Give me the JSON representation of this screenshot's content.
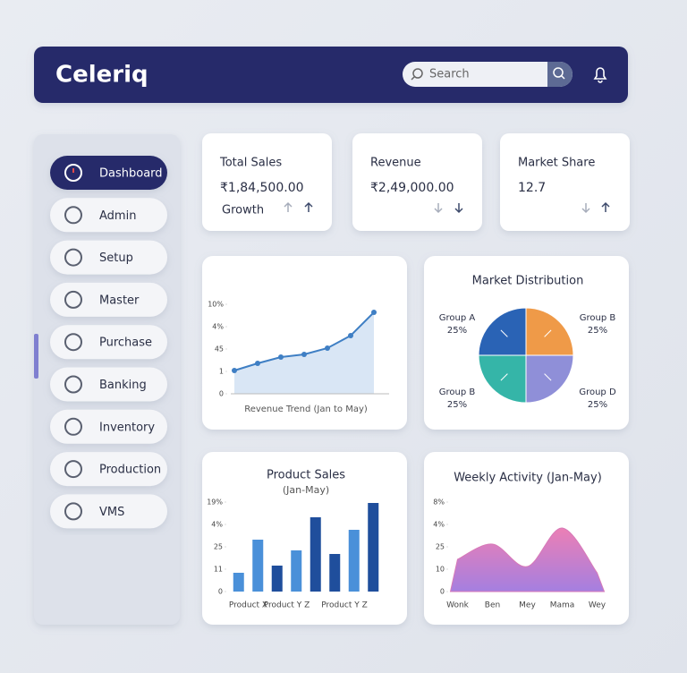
{
  "header": {
    "title": "Celeriq",
    "search_placeholder": "Search"
  },
  "sidebar": {
    "items": [
      "Dashboard",
      "Admin",
      "Setup",
      "Master",
      "Purchase",
      "Banking",
      "Inventory",
      "Production",
      "VMS"
    ]
  },
  "cards": [
    {
      "title": "Total Sales",
      "value": "₹1,84,500.00",
      "note": "Growth"
    },
    {
      "title": "Revenue",
      "value": "₹2,49,000.00"
    },
    {
      "title": "Market Share",
      "value": "12.7"
    }
  ],
  "chart_data": [
    {
      "type": "line",
      "caption": "Revenue Trend (Jan to May)",
      "categories": [
        null,
        null,
        null,
        null,
        null,
        null,
        null
      ],
      "values": [
        1.04,
        1.36,
        1.64,
        1.76,
        2.04,
        2.6,
        3.64
      ],
      "color": "#3f7fc4",
      "ylim": [
        0,
        4
      ],
      "yticks": [
        0,
        1,
        {
          "value": 2,
          "label": "45"
        },
        {
          "value": 3,
          "label": "4%"
        },
        {
          "value": 4,
          "label": "10%"
        }
      ]
    },
    {
      "type": "pie",
      "title": "Market Distribution",
      "categories": [
        "Group B",
        "Group D",
        "Group B",
        "Group A"
      ],
      "values": [
        25,
        25,
        25,
        25
      ],
      "value_labels": [
        "25%",
        "25%",
        "25%",
        "25%"
      ],
      "colors": [
        "#ef9a48",
        "#8f8fd8",
        "#35b5a8",
        "#2a63b5"
      ]
    },
    {
      "type": "bar",
      "title": "Product Sales",
      "subtitle": "(Jan-May)",
      "categories": [
        null,
        "Product X",
        null,
        "Product Y Z",
        null,
        null,
        "Product Y Z",
        null
      ],
      "values": [
        0.84,
        2.32,
        1.16,
        1.84,
        3.32,
        1.68,
        2.76,
        3.96
      ],
      "colors": [
        "#4a90d9",
        "#4a90d9",
        "#1f4e9c",
        "#4a90d9",
        "#1f4e9c",
        "#1f4e9c",
        "#4a90d9",
        "#1f4e9c"
      ],
      "ylim": [
        0,
        4
      ],
      "yticks": [
        0,
        {
          "value": 1,
          "label": "11"
        },
        {
          "value": 2,
          "label": "25"
        },
        {
          "value": 3,
          "label": "4%"
        },
        {
          "value": 4,
          "label": "19%"
        }
      ]
    },
    {
      "type": "area",
      "title": "Weekly Activity (Jan-May)",
      "categories": [
        "Wonk",
        "Ben",
        "Mey",
        "Mama",
        "Wey"
      ],
      "values": [
        1.44,
        2.12,
        1.12,
        2.84,
        0.84
      ],
      "color": "#d77ab8",
      "ylim": [
        0,
        4
      ],
      "yticks": [
        0,
        {
          "value": 1,
          "label": "10"
        },
        {
          "value": 2,
          "label": "25"
        },
        {
          "value": 3,
          "label": "4%"
        },
        {
          "value": 4,
          "label": "8%"
        }
      ]
    }
  ]
}
